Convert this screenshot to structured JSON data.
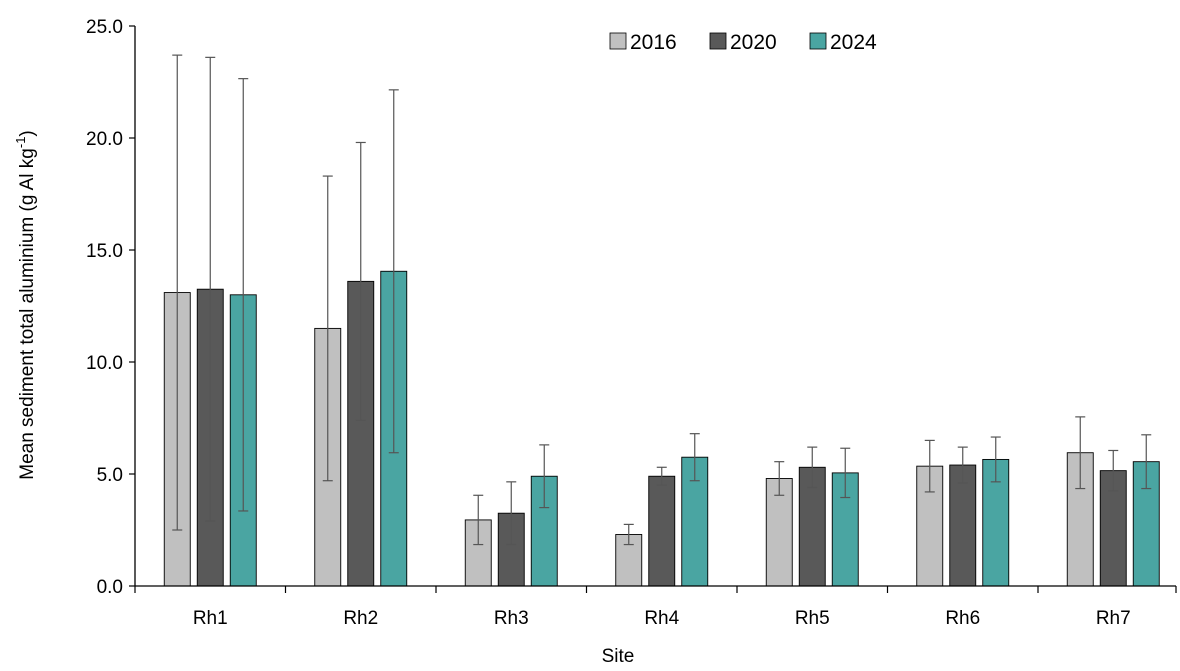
{
  "chart_data": {
    "type": "bar",
    "title": "",
    "xlabel": "Site",
    "ylabel_main": "Mean sediment total aluminium (g Al kg",
    "ylabel_sup": "-1",
    "ylabel_end": ")",
    "ylim": [
      0,
      25
    ],
    "yticks": [
      "0.0",
      "5.0",
      "10.0",
      "15.0",
      "20.0",
      "25.0"
    ],
    "grid": false,
    "legend_position": "top-center",
    "categories": [
      "Rh1",
      "Rh2",
      "Rh3",
      "Rh4",
      "Rh5",
      "Rh6",
      "Rh7"
    ],
    "series": [
      {
        "name": "2016",
        "color": "#c0c0c0",
        "values": [
          13.1,
          11.5,
          2.95,
          2.3,
          4.8,
          5.35,
          5.95
        ],
        "errors": [
          10.6,
          6.8,
          1.1,
          0.45,
          0.75,
          1.15,
          1.6
        ]
      },
      {
        "name": "2020",
        "color": "#595959",
        "values": [
          13.25,
          13.6,
          3.25,
          4.9,
          5.3,
          5.4,
          5.15
        ],
        "errors": [
          10.35,
          6.2,
          1.4,
          0.4,
          0.9,
          0.8,
          0.9
        ]
      },
      {
        "name": "2024",
        "color": "#4aa5a2",
        "values": [
          13.0,
          14.05,
          4.9,
          5.75,
          5.05,
          5.65,
          5.55
        ],
        "errors": [
          9.65,
          8.1,
          1.4,
          1.05,
          1.1,
          1.0,
          1.2
        ]
      }
    ]
  }
}
